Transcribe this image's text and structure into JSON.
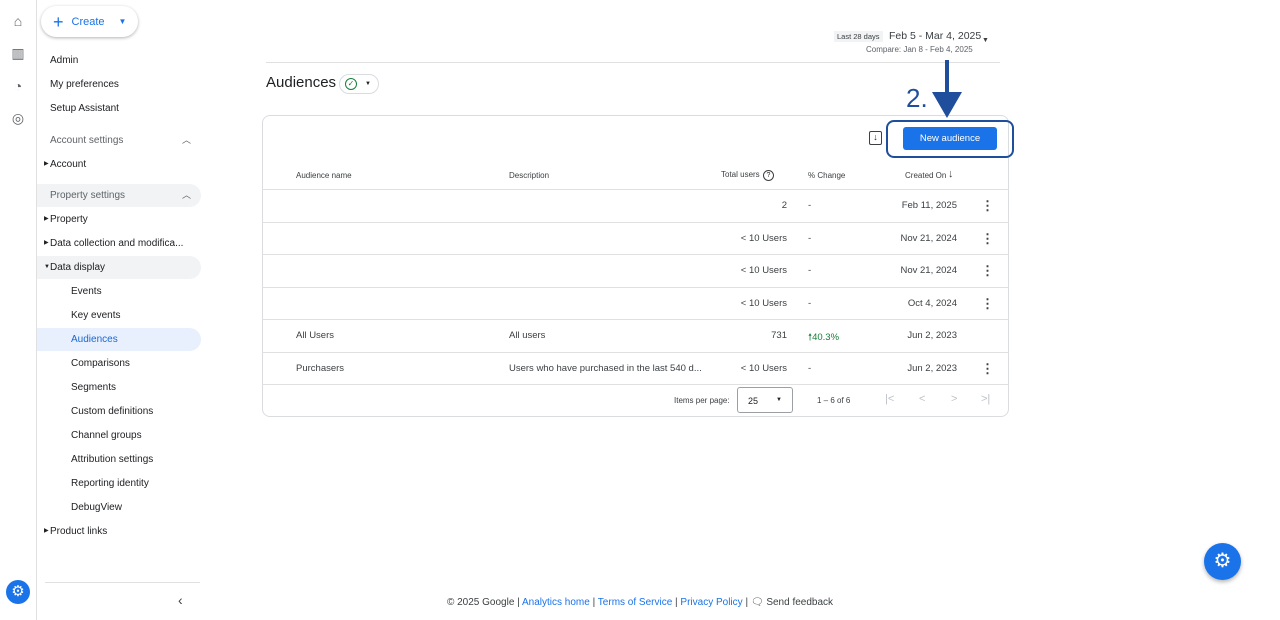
{
  "create": {
    "label": "Create"
  },
  "sidebar": {
    "top": [
      "Admin",
      "My preferences",
      "Setup Assistant"
    ],
    "account_settings": "Account settings",
    "account": "Account",
    "property_settings": "Property settings",
    "property": "Property",
    "data_collection": "Data collection and modifica...",
    "data_display": "Data display",
    "data_display_items": [
      "Events",
      "Key events",
      "Audiences",
      "Comparisons",
      "Segments",
      "Custom definitions",
      "Channel groups",
      "Attribution settings",
      "Reporting identity",
      "DebugView"
    ],
    "product_links": "Product links"
  },
  "date": {
    "preset": "Last 28 days",
    "range": "Feb 5 - Mar 4, 2025",
    "compare": "Compare: Jan 8 - Feb 4, 2025"
  },
  "page": {
    "title": "Audiences"
  },
  "annotation": {
    "step": "2."
  },
  "toolbar": {
    "new_audience": "New audience"
  },
  "table": {
    "headers": [
      "Audience name",
      "Description",
      "Total users",
      "% Change",
      "Created On"
    ],
    "rows": [
      {
        "name": "",
        "description": "",
        "users": "2",
        "change": "-",
        "created": "Feb 11, 2025",
        "menu": true
      },
      {
        "name": "",
        "description": "",
        "users": "< 10 Users",
        "change": "-",
        "created": "Nov 21, 2024",
        "menu": true
      },
      {
        "name": "",
        "description": "",
        "users": "< 10 Users",
        "change": "-",
        "created": "Nov 21, 2024",
        "menu": true
      },
      {
        "name": "",
        "description": "",
        "users": "< 10 Users",
        "change": "-",
        "created": "Oct 4, 2024",
        "menu": true
      },
      {
        "name": "All Users",
        "description": "All users",
        "users": "731",
        "change": "40.3%",
        "created": "Jun 2, 2023",
        "menu": false
      },
      {
        "name": "Purchasers",
        "description": "Users who have purchased in the last 540 d...",
        "users": "< 10 Users",
        "change": "-",
        "created": "Jun 2, 2023",
        "menu": true
      }
    ],
    "positive_color": "#188038"
  },
  "pagination": {
    "items_label": "Items per page:",
    "per_page": "25",
    "range": "1 – 6 of 6"
  },
  "footer": {
    "copyright": "© 2025 Google",
    "analytics_home": "Analytics home",
    "terms": "Terms of Service",
    "privacy": "Privacy Policy",
    "feedback": "Send feedback"
  }
}
